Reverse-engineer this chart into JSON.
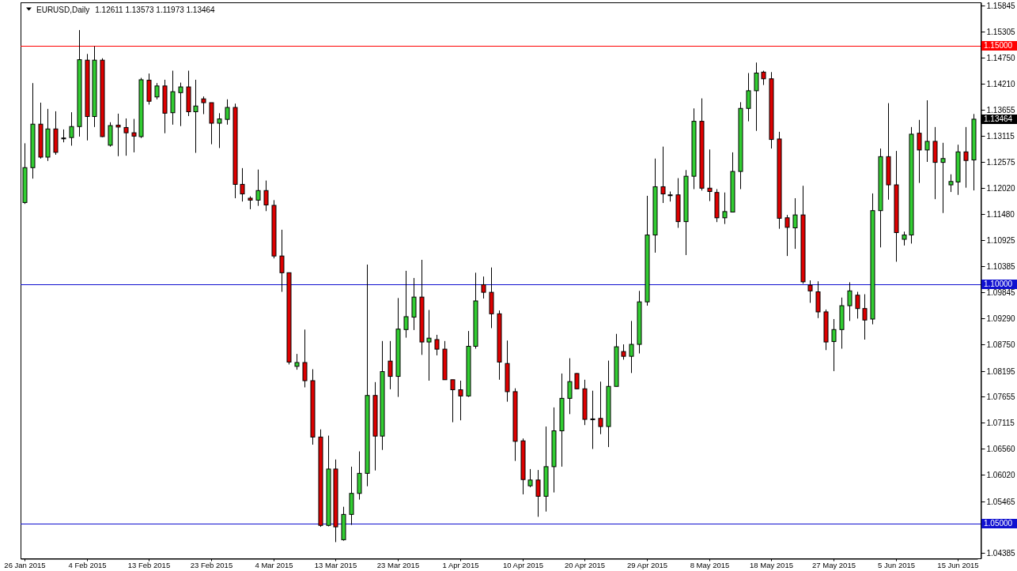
{
  "chart_data": {
    "type": "candlestick",
    "title": "EURUSD,Daily",
    "subtitle": "1.12611 1.13573 1.11973 1.13464",
    "categories": [
      "26 Jan 2015",
      null,
      null,
      null,
      null,
      null,
      null,
      null,
      "4 Feb 2015",
      null,
      null,
      null,
      null,
      null,
      null,
      null,
      "13 Feb 2015",
      null,
      null,
      null,
      null,
      null,
      null,
      null,
      "23 Feb 2015",
      null,
      null,
      null,
      null,
      null,
      null,
      null,
      "4 Mar 2015",
      null,
      null,
      null,
      null,
      null,
      null,
      null,
      "13 Mar 2015",
      null,
      null,
      null,
      null,
      null,
      null,
      null,
      "23 Mar 2015",
      null,
      null,
      null,
      null,
      null,
      null,
      null,
      "1 Apr 2015",
      null,
      null,
      null,
      null,
      null,
      null,
      null,
      "10 Apr 2015",
      null,
      null,
      null,
      null,
      null,
      null,
      null,
      "20 Apr 2015",
      null,
      null,
      null,
      null,
      null,
      null,
      null,
      "29 Apr 2015",
      null,
      null,
      null,
      null,
      null,
      null,
      null,
      "8 May 2015",
      null,
      null,
      null,
      null,
      null,
      null,
      null,
      "18 May 2015",
      null,
      null,
      null,
      null,
      null,
      null,
      null,
      "27 May 2015",
      null,
      null,
      null,
      null,
      null,
      null,
      null,
      "5 Jun 2015",
      null,
      null,
      null,
      null,
      null,
      null,
      null,
      "15 Jun 2015",
      null,
      null
    ],
    "ohlc": [
      [
        1.1172,
        1.1296,
        1.1169,
        1.1245
      ],
      [
        1.1245,
        1.1422,
        1.1222,
        1.1336
      ],
      [
        1.1336,
        1.1381,
        1.1264,
        1.1267
      ],
      [
        1.1267,
        1.1368,
        1.1259,
        1.1326
      ],
      [
        1.1326,
        1.1363,
        1.1272,
        1.1277
      ],
      [
        1.1307,
        1.1325,
        1.1298,
        1.1307
      ],
      [
        1.1308,
        1.1361,
        1.1291,
        1.1331
      ],
      [
        1.1331,
        1.1533,
        1.131,
        1.1471
      ],
      [
        1.147,
        1.1483,
        1.1302,
        1.1352
      ],
      [
        1.1352,
        1.1499,
        1.133,
        1.147
      ],
      [
        1.147,
        1.1474,
        1.1309,
        1.131
      ],
      [
        1.1292,
        1.134,
        1.1289,
        1.1333
      ],
      [
        1.1334,
        1.1358,
        1.1269,
        1.133
      ],
      [
        1.1329,
        1.1348,
        1.127,
        1.1318
      ],
      [
        1.1318,
        1.1347,
        1.1277,
        1.1311
      ],
      [
        1.131,
        1.1433,
        1.1307,
        1.1429
      ],
      [
        1.1428,
        1.1442,
        1.1377,
        1.1384
      ],
      [
        1.1393,
        1.1422,
        1.1388,
        1.1416
      ],
      [
        1.1416,
        1.1429,
        1.1317,
        1.1359
      ],
      [
        1.136,
        1.1448,
        1.1335,
        1.1404
      ],
      [
        1.1402,
        1.1423,
        1.1332,
        1.1414
      ],
      [
        1.1414,
        1.1448,
        1.1353,
        1.1362
      ],
      [
        1.1362,
        1.1429,
        1.1276,
        1.1374
      ],
      [
        1.1389,
        1.1394,
        1.1357,
        1.1381
      ],
      [
        1.1381,
        1.1381,
        1.1294,
        1.1338
      ],
      [
        1.1338,
        1.1359,
        1.1286,
        1.1347
      ],
      [
        1.1346,
        1.1388,
        1.1335,
        1.1371
      ],
      [
        1.1371,
        1.1379,
        1.1181,
        1.121
      ],
      [
        1.121,
        1.1244,
        1.1174,
        1.119
      ],
      [
        1.1181,
        1.1185,
        1.1158,
        1.1177
      ],
      [
        1.1177,
        1.1241,
        1.1165,
        1.1197
      ],
      [
        1.1197,
        1.1218,
        1.1154,
        1.1167
      ],
      [
        1.1166,
        1.1177,
        1.1055,
        1.106
      ],
      [
        1.106,
        1.1115,
        1.0985,
        1.1025
      ],
      [
        1.1025,
        1.1025,
        1.0833,
        1.0838
      ],
      [
        1.0829,
        1.0855,
        1.0822,
        1.0837
      ],
      [
        1.0837,
        1.0906,
        1.0785,
        1.0799
      ],
      [
        1.0799,
        1.0823,
        1.0665,
        1.0681
      ],
      [
        1.0681,
        1.0697,
        1.0493,
        1.0496
      ],
      [
        1.0496,
        1.0684,
        1.0494,
        1.0614
      ],
      [
        1.0614,
        1.0634,
        1.0461,
        1.0493
      ],
      [
        1.0466,
        1.0535,
        1.0464,
        1.0519
      ],
      [
        1.0519,
        1.0619,
        1.0497,
        1.0563
      ],
      [
        1.0563,
        1.0651,
        1.055,
        1.0605
      ],
      [
        1.0605,
        1.1042,
        1.0578,
        1.0768
      ],
      [
        1.0768,
        1.0796,
        1.0611,
        1.0683
      ],
      [
        1.0683,
        1.0882,
        1.0654,
        1.0818
      ],
      [
        1.084,
        1.0882,
        1.0781,
        1.0808
      ],
      [
        1.0808,
        1.0972,
        1.0765,
        1.0907
      ],
      [
        1.0906,
        1.1029,
        1.0889,
        1.0933
      ],
      [
        1.0932,
        1.1014,
        1.0905,
        1.0974
      ],
      [
        1.0974,
        1.1052,
        1.0853,
        1.088
      ],
      [
        1.088,
        1.0947,
        1.0799,
        1.0888
      ],
      [
        1.0885,
        1.0895,
        1.0852,
        1.0865
      ],
      [
        1.0865,
        1.0882,
        1.0801,
        1.0801
      ],
      [
        1.0801,
        1.0801,
        1.0712,
        1.078
      ],
      [
        1.078,
        1.0799,
        1.0716,
        1.0767
      ],
      [
        1.0767,
        1.0903,
        1.0765,
        1.0871
      ],
      [
        1.0871,
        1.1025,
        1.0866,
        1.0966
      ],
      [
        1.1,
        1.1017,
        1.0971,
        1.0984
      ],
      [
        1.0984,
        1.1036,
        1.0909,
        1.0939
      ],
      [
        1.0939,
        1.0946,
        1.0801,
        1.0838
      ],
      [
        1.0835,
        1.0883,
        1.0755,
        1.0776
      ],
      [
        1.0776,
        1.0783,
        1.0631,
        1.0672
      ],
      [
        1.0673,
        1.0678,
        1.0561,
        1.0592
      ],
      [
        1.0579,
        1.0614,
        1.0576,
        1.0591
      ],
      [
        1.0591,
        1.0612,
        1.0514,
        1.0557
      ],
      [
        1.0557,
        1.0703,
        1.0525,
        1.0619
      ],
      [
        1.0619,
        1.0743,
        1.0565,
        1.0694
      ],
      [
        1.0694,
        1.0814,
        1.0619,
        1.0762
      ],
      [
        1.0762,
        1.0846,
        1.0729,
        1.0797
      ],
      [
        1.0814,
        1.0815,
        1.0781,
        1.0782
      ],
      [
        1.0782,
        1.0801,
        1.0706,
        1.0718
      ],
      [
        1.0719,
        1.0778,
        1.0656,
        1.0719
      ],
      [
        1.072,
        1.0797,
        1.0687,
        1.0703
      ],
      [
        1.0703,
        1.0841,
        1.066,
        1.0787
      ],
      [
        1.0787,
        1.0897,
        1.0787,
        1.087
      ],
      [
        1.086,
        1.0875,
        1.0843,
        1.085
      ],
      [
        1.085,
        1.0924,
        1.0815,
        1.0875
      ],
      [
        1.0875,
        1.0987,
        1.0856,
        1.0964
      ],
      [
        1.0964,
        1.1186,
        1.0956,
        1.1104
      ],
      [
        1.1104,
        1.1264,
        1.1067,
        1.1205
      ],
      [
        1.1205,
        1.1289,
        1.1171,
        1.119
      ],
      [
        1.1188,
        1.1195,
        1.1174,
        1.1188
      ],
      [
        1.1188,
        1.1223,
        1.1119,
        1.1132
      ],
      [
        1.1132,
        1.124,
        1.1062,
        1.1227
      ],
      [
        1.1227,
        1.1369,
        1.12,
        1.1342
      ],
      [
        1.1342,
        1.139,
        1.1197,
        1.1202
      ],
      [
        1.1202,
        1.1283,
        1.1175,
        1.1195
      ],
      [
        1.1193,
        1.12,
        1.1131,
        1.114
      ],
      [
        1.114,
        1.1193,
        1.1127,
        1.1153
      ],
      [
        1.1152,
        1.1277,
        1.1152,
        1.1237
      ],
      [
        1.1237,
        1.1382,
        1.12,
        1.1369
      ],
      [
        1.1369,
        1.1443,
        1.1342,
        1.1406
      ],
      [
        1.1406,
        1.1465,
        1.1322,
        1.1443
      ],
      [
        1.1445,
        1.1448,
        1.1418,
        1.1431
      ],
      [
        1.1431,
        1.1445,
        1.1285,
        1.1304
      ],
      [
        1.1305,
        1.132,
        1.1117,
        1.1139
      ],
      [
        1.114,
        1.1146,
        1.106,
        1.112
      ],
      [
        1.1119,
        1.1181,
        1.1075,
        1.1146
      ],
      [
        1.1146,
        1.1207,
        1.1002,
        1.1006
      ],
      [
        1.0999,
        1.1009,
        1.0962,
        1.0987
      ],
      [
        1.0985,
        1.1007,
        1.093,
        1.0943
      ],
      [
        1.0943,
        1.0948,
        1.0863,
        1.088
      ],
      [
        1.0881,
        1.0928,
        1.0819,
        1.0906
      ],
      [
        1.0906,
        1.0973,
        1.0866,
        1.0956
      ],
      [
        1.0956,
        1.1005,
        1.0924,
        1.0987
      ],
      [
        1.0978,
        1.0985,
        1.0929,
        1.095
      ],
      [
        1.095,
        1.098,
        1.0885,
        1.0926
      ],
      [
        1.0928,
        1.1191,
        1.0917,
        1.1155
      ],
      [
        1.1155,
        1.1285,
        1.1078,
        1.1268
      ],
      [
        1.1268,
        1.138,
        1.1178,
        1.1209
      ],
      [
        1.1209,
        1.128,
        1.1048,
        1.1109
      ],
      [
        1.1095,
        1.1111,
        1.1082,
        1.1104
      ],
      [
        1.1104,
        1.133,
        1.1086,
        1.1315
      ],
      [
        1.1317,
        1.1345,
        1.1213,
        1.1282
      ],
      [
        1.1282,
        1.1386,
        1.1257,
        1.13
      ],
      [
        1.13,
        1.133,
        1.1179,
        1.1256
      ],
      [
        1.1256,
        1.1297,
        1.115,
        1.1264
      ],
      [
        1.1209,
        1.1231,
        1.1194,
        1.1216
      ],
      [
        1.1215,
        1.1293,
        1.1188,
        1.1278
      ],
      [
        1.1278,
        1.133,
        1.1203,
        1.126
      ],
      [
        1.12611,
        1.13573,
        1.11973,
        1.13464
      ]
    ],
    "colors": [
      "#32cd32",
      "#32cd32",
      "#dd0000",
      "#32cd32",
      "#dd0000",
      "#000000",
      "#32cd32",
      "#32cd32",
      "#dd0000",
      "#32cd32",
      "#dd0000",
      "#32cd32",
      "#dd0000",
      "#dd0000",
      "#dd0000",
      "#32cd32",
      "#dd0000",
      "#32cd32",
      "#dd0000",
      "#32cd32",
      "#32cd32",
      "#dd0000",
      "#32cd32",
      "#dd0000",
      "#dd0000",
      "#32cd32",
      "#32cd32",
      "#dd0000",
      "#dd0000",
      "#dd0000",
      "#32cd32",
      "#dd0000",
      "#dd0000",
      "#dd0000",
      "#dd0000",
      "#32cd32",
      "#dd0000",
      "#dd0000",
      "#dd0000",
      "#32cd32",
      "#dd0000",
      "#32cd32",
      "#32cd32",
      "#32cd32",
      "#32cd32",
      "#dd0000",
      "#32cd32",
      "#dd0000",
      "#32cd32",
      "#32cd32",
      "#32cd32",
      "#dd0000",
      "#32cd32",
      "#dd0000",
      "#dd0000",
      "#dd0000",
      "#dd0000",
      "#32cd32",
      "#32cd32",
      "#dd0000",
      "#dd0000",
      "#dd0000",
      "#dd0000",
      "#dd0000",
      "#dd0000",
      "#32cd32",
      "#dd0000",
      "#32cd32",
      "#32cd32",
      "#32cd32",
      "#32cd32",
      "#dd0000",
      "#dd0000",
      "#000000",
      "#dd0000",
      "#32cd32",
      "#32cd32",
      "#dd0000",
      "#32cd32",
      "#32cd32",
      "#32cd32",
      "#32cd32",
      "#dd0000",
      "#000000",
      "#dd0000",
      "#32cd32",
      "#32cd32",
      "#dd0000",
      "#dd0000",
      "#dd0000",
      "#32cd32",
      "#32cd32",
      "#32cd32",
      "#32cd32",
      "#32cd32",
      "#dd0000",
      "#dd0000",
      "#dd0000",
      "#dd0000",
      "#32cd32",
      "#dd0000",
      "#dd0000",
      "#dd0000",
      "#dd0000",
      "#32cd32",
      "#32cd32",
      "#32cd32",
      "#dd0000",
      "#dd0000",
      "#32cd32",
      "#32cd32",
      "#dd0000",
      "#dd0000",
      "#32cd32",
      "#32cd32",
      "#dd0000",
      "#32cd32",
      "#dd0000",
      "#32cd32",
      "#32cd32",
      "#32cd32",
      "#dd0000",
      "#32cd32"
    ],
    "ylim": [
      1.0427,
      1.1591
    ],
    "yticks": [
      {
        "value": 1.15845,
        "label": "1.15845"
      },
      {
        "value": 1.15305,
        "label": "1.15305"
      },
      {
        "value": 1.1475,
        "label": "1.14750"
      },
      {
        "value": 1.1421,
        "label": "1.14210"
      },
      {
        "value": 1.13655,
        "label": "1.13655"
      },
      {
        "value": 1.13115,
        "label": "1.13115"
      },
      {
        "value": 1.12575,
        "label": "1.12575"
      },
      {
        "value": 1.1202,
        "label": "1.12020"
      },
      {
        "value": 1.1148,
        "label": "1.11480"
      },
      {
        "value": 1.10925,
        "label": "1.10925"
      },
      {
        "value": 1.10385,
        "label": "1.10385"
      },
      {
        "value": 1.09845,
        "label": "1.09845"
      },
      {
        "value": 1.0929,
        "label": "1.09290"
      },
      {
        "value": 1.0875,
        "label": "1.08750"
      },
      {
        "value": 1.08195,
        "label": "1.08195"
      },
      {
        "value": 1.07655,
        "label": "1.07655"
      },
      {
        "value": 1.07115,
        "label": "1.07115"
      },
      {
        "value": 1.0656,
        "label": "1.06560"
      },
      {
        "value": 1.0602,
        "label": "1.06020"
      },
      {
        "value": 1.05465,
        "label": "1.05465"
      },
      {
        "value": 1.04385,
        "label": "1.04385"
      }
    ],
    "ref_lines": [
      {
        "axis": "y",
        "value": 1.15,
        "label": "1.15000",
        "color": "#ff0000"
      },
      {
        "axis": "y",
        "value": 1.1,
        "label": "1.10000",
        "color": "#1010d0"
      },
      {
        "axis": "y",
        "value": 1.05,
        "label": "1.05000",
        "color": "#1010d0"
      }
    ],
    "annotations": [
      "1.13464"
    ]
  }
}
